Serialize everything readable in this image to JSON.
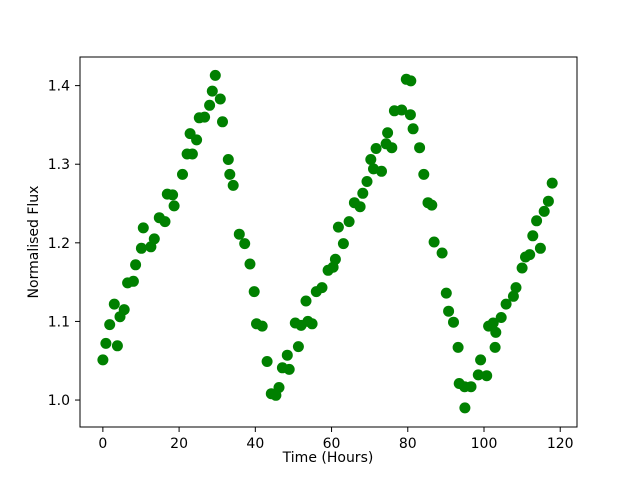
{
  "figure": {
    "background": "#ffffff",
    "frame_color": "#000000"
  },
  "chart_data": {
    "type": "scatter",
    "title": "",
    "xlabel": "Time (Hours)",
    "ylabel": "Normalised Flux",
    "legend": null,
    "grid": false,
    "marker": "circle",
    "marker_color": "#008000",
    "marker_radius_px": 5.5,
    "xlim": [
      -6.0,
      124.4
    ],
    "ylim": [
      0.9657,
      1.4364
    ],
    "x_ticks": [
      0,
      20,
      40,
      60,
      80,
      100,
      120
    ],
    "y_ticks": [
      1.0,
      1.1,
      1.2,
      1.3,
      1.4
    ],
    "points": [
      [
        0.0,
        1.051
      ],
      [
        0.8,
        1.072
      ],
      [
        1.8,
        1.096
      ],
      [
        3.0,
        1.122
      ],
      [
        3.8,
        1.069
      ],
      [
        4.5,
        1.106
      ],
      [
        5.6,
        1.115
      ],
      [
        6.5,
        1.149
      ],
      [
        8.0,
        1.151
      ],
      [
        8.6,
        1.172
      ],
      [
        10.1,
        1.193
      ],
      [
        10.6,
        1.219
      ],
      [
        12.6,
        1.195
      ],
      [
        13.5,
        1.205
      ],
      [
        14.8,
        1.232
      ],
      [
        16.3,
        1.227
      ],
      [
        16.9,
        1.262
      ],
      [
        18.3,
        1.261
      ],
      [
        18.7,
        1.247
      ],
      [
        20.9,
        1.287
      ],
      [
        22.1,
        1.313
      ],
      [
        22.9,
        1.339
      ],
      [
        23.5,
        1.313
      ],
      [
        24.6,
        1.331
      ],
      [
        25.3,
        1.359
      ],
      [
        26.7,
        1.36
      ],
      [
        28.0,
        1.375
      ],
      [
        28.7,
        1.393
      ],
      [
        29.5,
        1.413
      ],
      [
        30.8,
        1.383
      ],
      [
        31.4,
        1.354
      ],
      [
        32.9,
        1.306
      ],
      [
        33.3,
        1.287
      ],
      [
        34.2,
        1.273
      ],
      [
        35.8,
        1.211
      ],
      [
        37.2,
        1.199
      ],
      [
        38.6,
        1.173
      ],
      [
        39.7,
        1.138
      ],
      [
        40.3,
        1.097
      ],
      [
        41.8,
        1.094
      ],
      [
        43.1,
        1.049
      ],
      [
        44.2,
        1.008
      ],
      [
        45.4,
        1.006
      ],
      [
        46.2,
        1.016
      ],
      [
        47.1,
        1.041
      ],
      [
        48.4,
        1.057
      ],
      [
        48.9,
        1.039
      ],
      [
        50.5,
        1.098
      ],
      [
        51.3,
        1.068
      ],
      [
        52.0,
        1.095
      ],
      [
        53.3,
        1.126
      ],
      [
        53.8,
        1.1
      ],
      [
        54.9,
        1.097
      ],
      [
        56.0,
        1.138
      ],
      [
        57.5,
        1.143
      ],
      [
        59.1,
        1.165
      ],
      [
        60.4,
        1.169
      ],
      [
        61.0,
        1.179
      ],
      [
        61.8,
        1.22
      ],
      [
        63.1,
        1.199
      ],
      [
        64.6,
        1.227
      ],
      [
        66.0,
        1.251
      ],
      [
        67.5,
        1.246
      ],
      [
        68.2,
        1.263
      ],
      [
        69.3,
        1.278
      ],
      [
        70.3,
        1.306
      ],
      [
        71.0,
        1.294
      ],
      [
        71.7,
        1.32
      ],
      [
        73.1,
        1.291
      ],
      [
        74.3,
        1.326
      ],
      [
        74.7,
        1.34
      ],
      [
        75.8,
        1.321
      ],
      [
        76.5,
        1.368
      ],
      [
        78.4,
        1.369
      ],
      [
        79.6,
        1.408
      ],
      [
        80.7,
        1.363
      ],
      [
        80.8,
        1.406
      ],
      [
        81.4,
        1.345
      ],
      [
        83.1,
        1.321
      ],
      [
        84.2,
        1.287
      ],
      [
        85.3,
        1.251
      ],
      [
        86.3,
        1.248
      ],
      [
        86.9,
        1.201
      ],
      [
        89.0,
        1.187
      ],
      [
        90.1,
        1.136
      ],
      [
        90.7,
        1.113
      ],
      [
        92.0,
        1.099
      ],
      [
        93.2,
        1.067
      ],
      [
        93.5,
        1.021
      ],
      [
        94.9,
        1.017
      ],
      [
        95.0,
        0.99
      ],
      [
        96.6,
        1.017
      ],
      [
        98.5,
        1.032
      ],
      [
        99.1,
        1.051
      ],
      [
        100.7,
        1.031
      ],
      [
        101.2,
        1.094
      ],
      [
        102.4,
        1.098
      ],
      [
        102.9,
        1.067
      ],
      [
        103.1,
        1.086
      ],
      [
        104.5,
        1.105
      ],
      [
        105.8,
        1.122
      ],
      [
        107.7,
        1.132
      ],
      [
        108.4,
        1.143
      ],
      [
        110.0,
        1.168
      ],
      [
        110.9,
        1.182
      ],
      [
        112.0,
        1.185
      ],
      [
        112.8,
        1.209
      ],
      [
        113.8,
        1.228
      ],
      [
        114.8,
        1.193
      ],
      [
        115.8,
        1.24
      ],
      [
        116.9,
        1.253
      ],
      [
        117.9,
        1.276
      ]
    ]
  }
}
